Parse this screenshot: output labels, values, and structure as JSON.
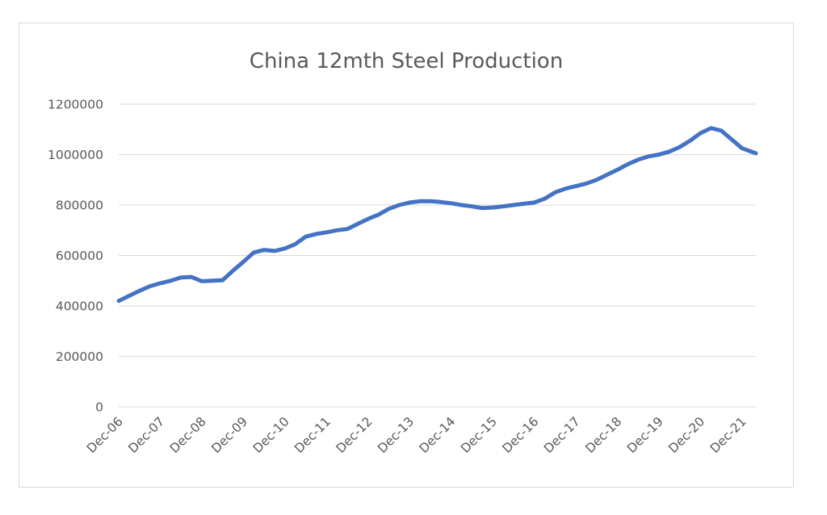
{
  "chart_data": {
    "type": "line",
    "title": "China 12mth Steel Production",
    "xlabel": "",
    "ylabel": "",
    "ylim": [
      0,
      1200000
    ],
    "yticks": [
      0,
      200000,
      400000,
      600000,
      800000,
      1000000,
      1200000
    ],
    "ytick_labels": [
      "0",
      "200000",
      "400000",
      "600000",
      "800000",
      "1000000",
      "1200000"
    ],
    "x_range": [
      "Dec-06",
      "Apr-22"
    ],
    "xticks": [
      "Dec-06",
      "Dec-07",
      "Dec-08",
      "Dec-09",
      "Dec-10",
      "Dec-11",
      "Dec-12",
      "Dec-13",
      "Dec-14",
      "Dec-15",
      "Dec-16",
      "Dec-17",
      "Dec-18",
      "Dec-19",
      "Dec-20",
      "Dec-21"
    ],
    "grid": true,
    "legend": "none",
    "colors": {
      "series": "#4472c4",
      "grid": "#d9d9d9",
      "text": "#595959",
      "frame": "#d9d9d9"
    },
    "series": [
      {
        "x": [
          "Dec-06",
          "Mar-07",
          "Jun-07",
          "Sep-07",
          "Dec-07",
          "Mar-08",
          "Jun-08",
          "Sep-08",
          "Dec-08",
          "Mar-09",
          "Jun-09",
          "Sep-09",
          "Dec-09",
          "Mar-10",
          "Jun-10",
          "Sep-10",
          "Dec-10",
          "Mar-11",
          "Jun-11",
          "Sep-11",
          "Dec-11",
          "Mar-12",
          "Jun-12",
          "Sep-12",
          "Dec-12",
          "Mar-13",
          "Jun-13",
          "Sep-13",
          "Dec-13",
          "Mar-14",
          "Jun-14",
          "Sep-14",
          "Dec-14",
          "Mar-15",
          "Jun-15",
          "Sep-15",
          "Dec-15",
          "Mar-16",
          "Jun-16",
          "Sep-16",
          "Dec-16",
          "Mar-17",
          "Jun-17",
          "Sep-17",
          "Dec-17",
          "Mar-18",
          "Jun-18",
          "Sep-18",
          "Dec-18",
          "Mar-19",
          "Jun-19",
          "Sep-19",
          "Dec-19",
          "Mar-20",
          "Jun-20",
          "Sep-20",
          "Dec-20",
          "Mar-21",
          "Jun-21",
          "Sep-21",
          "Dec-21",
          "Mar-22",
          "Apr-22"
        ],
        "values": [
          420000,
          440000,
          460000,
          478000,
          490000,
          500000,
          513000,
          515000,
          498000,
          500000,
          502000,
          540000,
          575000,
          612000,
          622000,
          618000,
          628000,
          645000,
          675000,
          685000,
          692000,
          700000,
          705000,
          725000,
          745000,
          762000,
          785000,
          800000,
          810000,
          815000,
          815000,
          812000,
          807000,
          800000,
          795000,
          788000,
          790000,
          795000,
          800000,
          805000,
          810000,
          825000,
          850000,
          865000,
          875000,
          885000,
          900000,
          920000,
          940000,
          962000,
          980000,
          993000,
          1000000,
          1012000,
          1030000,
          1055000,
          1085000,
          1105000,
          1095000,
          1060000,
          1025000,
          1010000,
          1005000
        ]
      }
    ]
  }
}
